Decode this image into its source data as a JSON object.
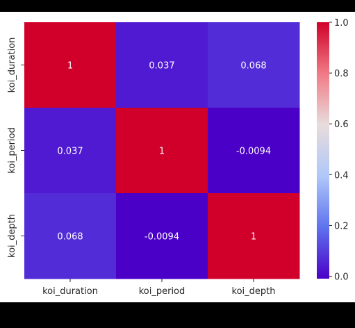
{
  "chart_data": {
    "type": "heatmap",
    "title": "",
    "xlabel": "",
    "ylabel": "",
    "x_categories": [
      "koi_duration",
      "koi_period",
      "koi_depth"
    ],
    "y_categories": [
      "koi_duration",
      "koi_period",
      "koi_depth"
    ],
    "values": [
      [
        1,
        0.037,
        0.068
      ],
      [
        0.037,
        1,
        -0.0094
      ],
      [
        0.068,
        -0.0094,
        1
      ]
    ],
    "cell_labels": [
      [
        "1",
        "0.037",
        "0.068"
      ],
      [
        "0.037",
        "1",
        "-0.0094"
      ],
      [
        "0.068",
        "-0.0094",
        "1"
      ]
    ],
    "colormap": "coolwarm-purple-red",
    "colorbar": {
      "range": [
        -0.0094,
        1
      ],
      "ticks": [
        0.0,
        0.2,
        0.4,
        0.6,
        0.8,
        1.0
      ],
      "tick_labels": [
        "0.0",
        "0.2",
        "0.4",
        "0.6",
        "0.8",
        "1.0"
      ],
      "colors": [
        "#4b00c8",
        "#5e72ee",
        "#b0c8f8",
        "#e8dcdc",
        "#f07a86",
        "#d0002a"
      ]
    },
    "annotation_colors": {
      "light_text": "#ffffff"
    },
    "legend": "colorbar-right",
    "grid": false
  }
}
